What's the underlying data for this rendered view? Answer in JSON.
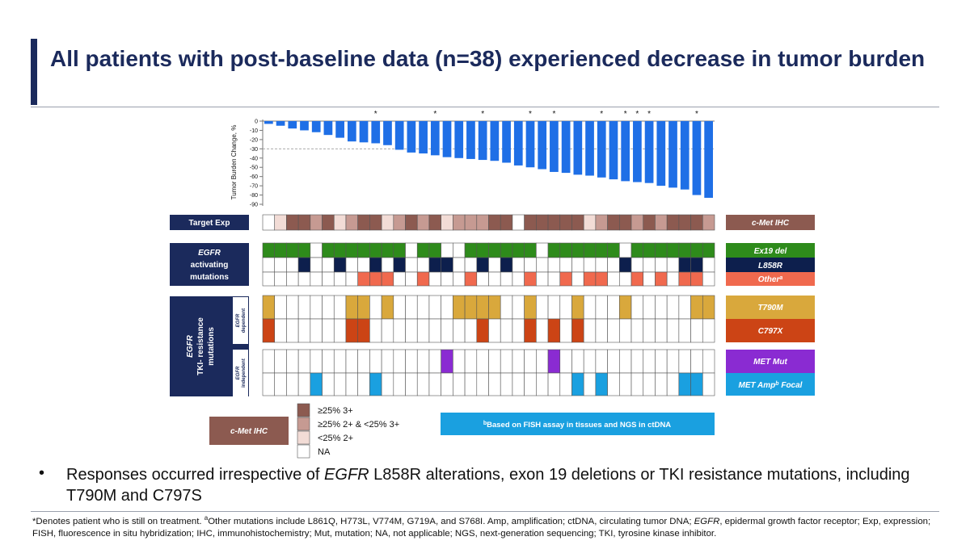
{
  "title": "All patients with post-baseline data (n=38) experienced decrease in tumor burden",
  "chart_data": {
    "type": "bar",
    "ylabel": "Tumor Burden Change, %",
    "yticks": [
      "0",
      "-10",
      "-20",
      "-30",
      "-40",
      "-50",
      "-60",
      "-70",
      "-80",
      "-90"
    ],
    "ylim": [
      -90,
      0
    ],
    "reference_line": -30,
    "bar_color": "#1f6fe6",
    "values": [
      -3,
      -5,
      -8,
      -10,
      -12,
      -15,
      -18,
      -22,
      -23,
      -24,
      -26,
      -31,
      -34,
      -35,
      -37,
      -39,
      -40,
      -41,
      -42,
      -43,
      -45,
      -48,
      -50,
      -52,
      -55,
      -56,
      -58,
      -59,
      -61,
      -63,
      -65,
      -66,
      -67,
      -70,
      -72,
      -74,
      -80,
      -83
    ],
    "still_on_treatment": [
      false,
      false,
      false,
      false,
      false,
      false,
      false,
      false,
      false,
      true,
      false,
      false,
      false,
      false,
      true,
      false,
      false,
      false,
      true,
      false,
      false,
      false,
      true,
      false,
      true,
      false,
      false,
      false,
      true,
      false,
      true,
      true,
      true,
      false,
      false,
      false,
      true,
      false
    ],
    "star_symbol": "*",
    "legend_colors": {
      "ihc_high": "#8c5a50",
      "ihc_mid": "#c69a92",
      "ihc_low": "#f2dcd6",
      "ihc_na": "#ffffff",
      "ex19": "#2e8b1b",
      "l858r": "#0d1f4d",
      "other": "#f0694e",
      "t790m": "#d9a83c",
      "c797x": "#cc4415",
      "met_mut": "#8a2bd2",
      "met_amp": "#1aa0e0"
    },
    "rows": {
      "target_exp": [
        "na",
        "low",
        "high",
        "high",
        "mid",
        "high",
        "low",
        "mid",
        "high",
        "high",
        "low",
        "mid",
        "high",
        "mid",
        "high",
        "low",
        "mid",
        "mid",
        "mid",
        "high",
        "high",
        "na",
        "high",
        "high",
        "high",
        "high",
        "high",
        "low",
        "mid",
        "high",
        "high",
        "mid",
        "high",
        "mid",
        "high",
        "high",
        "high",
        "mid"
      ],
      "ex19": [
        1,
        1,
        1,
        1,
        0,
        1,
        1,
        1,
        1,
        1,
        1,
        1,
        0,
        1,
        1,
        0,
        0,
        1,
        1,
        1,
        1,
        1,
        1,
        0,
        1,
        1,
        1,
        1,
        1,
        1,
        0,
        1,
        1,
        1,
        1,
        1,
        1,
        1
      ],
      "l858r": [
        0,
        0,
        0,
        1,
        0,
        0,
        1,
        0,
        0,
        1,
        0,
        1,
        0,
        0,
        1,
        1,
        0,
        0,
        1,
        0,
        1,
        0,
        0,
        0,
        0,
        0,
        0,
        0,
        0,
        0,
        1,
        0,
        0,
        0,
        0,
        1,
        1,
        0
      ],
      "other": [
        0,
        0,
        0,
        0,
        0,
        0,
        0,
        0,
        1,
        1,
        1,
        0,
        0,
        1,
        0,
        0,
        0,
        1,
        0,
        0,
        0,
        0,
        1,
        0,
        0,
        1,
        0,
        1,
        1,
        0,
        0,
        1,
        0,
        1,
        0,
        1,
        1,
        0
      ],
      "t790m": [
        1,
        0,
        0,
        0,
        0,
        0,
        0,
        1,
        1,
        0,
        1,
        0,
        0,
        0,
        0,
        0,
        1,
        1,
        1,
        1,
        0,
        0,
        1,
        0,
        0,
        0,
        1,
        0,
        0,
        0,
        1,
        0,
        0,
        0,
        0,
        0,
        1,
        1
      ],
      "c797x": [
        1,
        0,
        0,
        0,
        0,
        0,
        0,
        1,
        1,
        0,
        0,
        0,
        0,
        0,
        0,
        0,
        0,
        0,
        1,
        0,
        0,
        0,
        1,
        0,
        1,
        0,
        1,
        0,
        0,
        0,
        0,
        0,
        0,
        0,
        0,
        0,
        0,
        0
      ],
      "met_mut": [
        0,
        0,
        0,
        0,
        0,
        0,
        0,
        0,
        0,
        0,
        0,
        0,
        0,
        0,
        0,
        1,
        0,
        0,
        0,
        0,
        0,
        0,
        0,
        0,
        1,
        0,
        0,
        0,
        0,
        0,
        0,
        0,
        0,
        0,
        0,
        0,
        0,
        0
      ],
      "met_amp": [
        0,
        0,
        0,
        0,
        1,
        0,
        0,
        0,
        0,
        1,
        0,
        0,
        0,
        0,
        0,
        0,
        0,
        0,
        0,
        0,
        0,
        0,
        0,
        0,
        0,
        0,
        1,
        0,
        1,
        0,
        0,
        0,
        0,
        0,
        0,
        1,
        1,
        0
      ]
    }
  },
  "labels": {
    "target_exp": "Target Exp",
    "egfr_act_1": "EGFR",
    "egfr_act_2": "activating",
    "egfr_act_3": "mutations",
    "tki_1": "EGFR",
    "tki_2": "TKI- resistance",
    "tki_3": "mutations",
    "dependent_1": "EGFR",
    "dependent_2": "dependent",
    "independent_1": "EGFR",
    "independent_2": "independent",
    "cmet_ihc": "c-Met IHC",
    "ex19": "Ex19 del",
    "l858r": "L858R",
    "other": "Other",
    "other_sup": "a",
    "t790m": "T790M",
    "c797x": "C797X",
    "met_mut": "MET Mut",
    "met_amp": "MET Amp",
    "met_amp_sup": "b",
    "met_amp_tail": " Focal"
  },
  "ihc_legend": {
    "title": "c-Met IHC",
    "items": [
      "≥25% 3+",
      "≥25% 2+ & <25% 3+",
      "<25% 2+",
      "NA"
    ]
  },
  "fish_note": {
    "sup": "b",
    "text": "Based on FISH assay in tissues and NGS in ctDNA"
  },
  "bullet": {
    "symbol": "•",
    "part1": "Responses occurred irrespective of ",
    "part2": "EGFR",
    "part3": " L858R alterations, exon 19 deletions or TKI resistance mutations, including T790M and C797S"
  },
  "footnote": {
    "p1": "*Denotes patient who is still on treatment. ",
    "sup": "a",
    "p2": "Other mutations include L861Q, H773L, V774M, G719A, and S768I. Amp, amplification; ctDNA, circulating tumor DNA; ",
    "p3": "EGFR",
    "p4": ", epidermal growth factor receptor; Exp, expression; FISH, fluorescence in situ hybridization; IHC, immunohistochemistry; Mut, mutation; NA, not applicable; NGS, next-generation sequencing; TKI, tyrosine kinase inhibitor."
  }
}
